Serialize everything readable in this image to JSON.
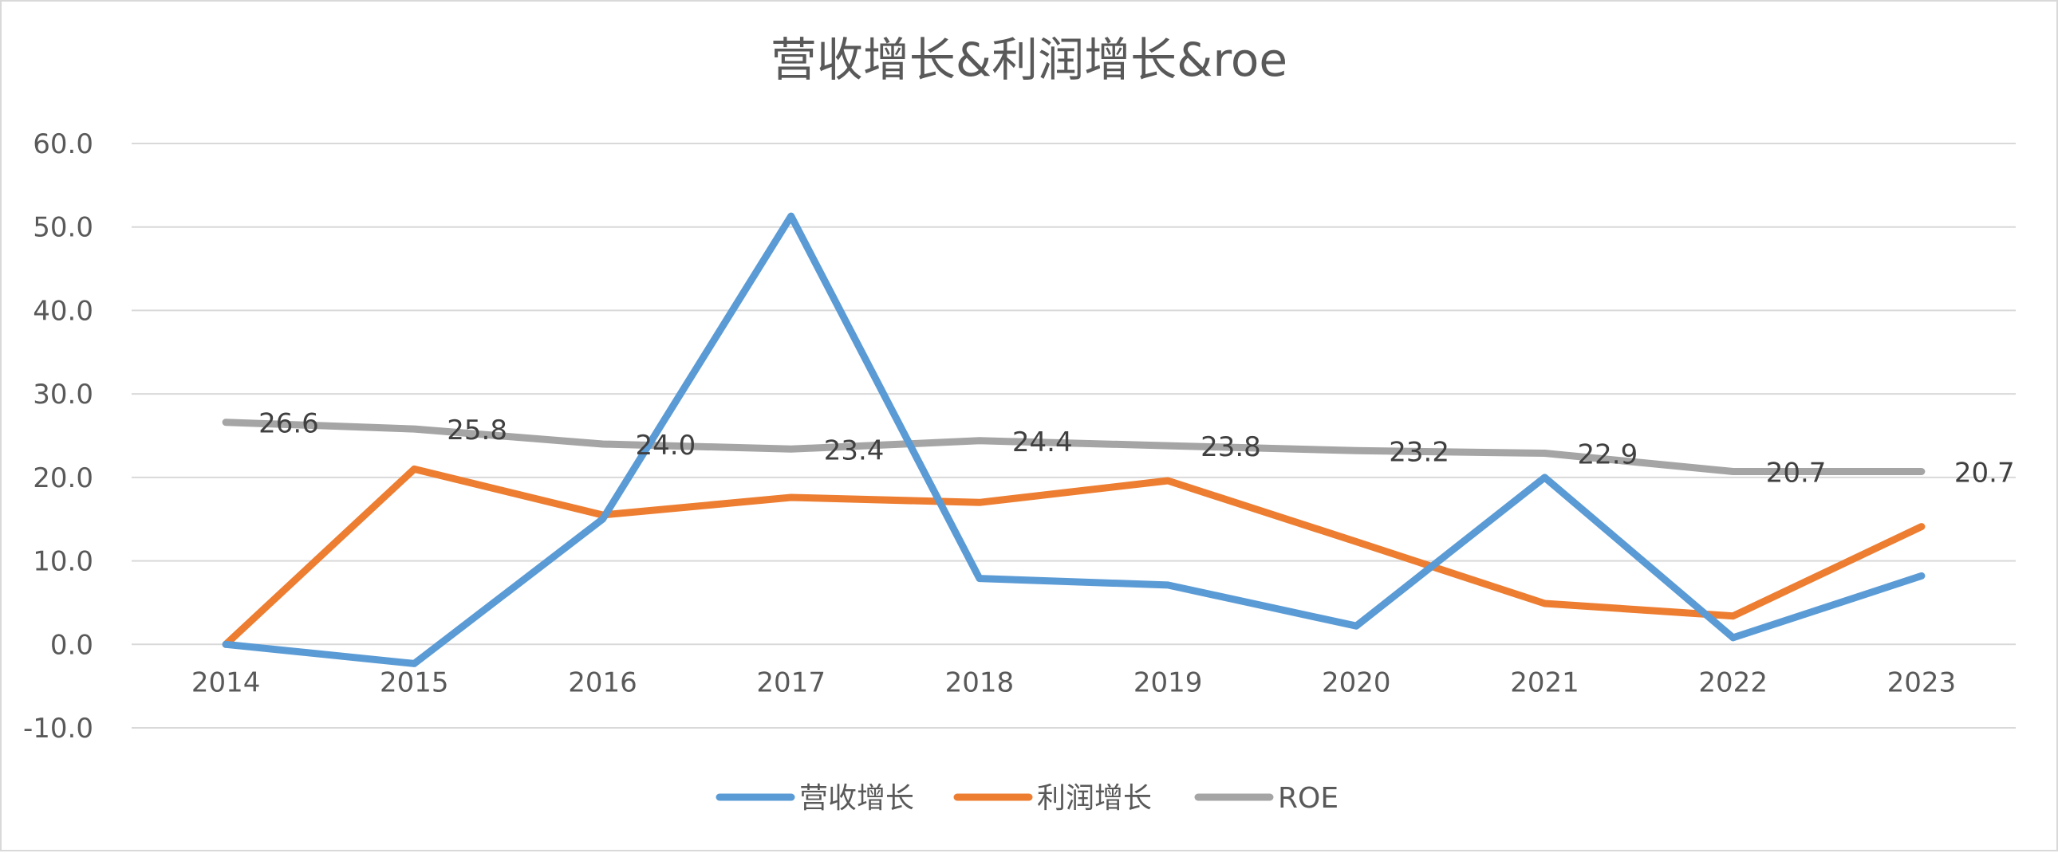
{
  "chart_data": {
    "type": "line",
    "title": "营收增长&利润增长&roe",
    "xlabel": "",
    "ylabel": "",
    "categories": [
      "2014",
      "2015",
      "2016",
      "2017",
      "2018",
      "2019",
      "2020",
      "2021",
      "2022",
      "2023"
    ],
    "ylim": [
      -10,
      60
    ],
    "yticks": [
      -10,
      0,
      10,
      20,
      30,
      40,
      50,
      60
    ],
    "ytick_labels": [
      "-10.0",
      "0.0",
      "10.0",
      "20.0",
      "30.0",
      "40.0",
      "50.0",
      "60.0"
    ],
    "grid": "horizontal",
    "legend_position": "bottom",
    "series": [
      {
        "name": "营收增长",
        "color": "#5b9bd5",
        "values": [
          0.0,
          -2.3,
          15.0,
          51.3,
          7.9,
          7.1,
          2.2,
          20.0,
          0.8,
          8.2
        ],
        "show_labels": false
      },
      {
        "name": "利润增长",
        "color": "#ed7d31",
        "values": [
          0.0,
          21.0,
          15.5,
          17.6,
          17.0,
          19.6,
          12.3,
          4.9,
          3.4,
          14.1
        ],
        "show_labels": false
      },
      {
        "name": "ROE",
        "color": "#a5a5a5",
        "values": [
          26.6,
          25.8,
          24.0,
          23.4,
          24.4,
          23.8,
          23.2,
          22.9,
          20.7,
          20.7
        ],
        "labels": [
          "26.6",
          "25.8",
          "24.0",
          "23.4",
          "24.4",
          "23.8",
          "23.2",
          "22.9",
          "20.7",
          "20.7"
        ],
        "show_labels": true
      }
    ]
  }
}
